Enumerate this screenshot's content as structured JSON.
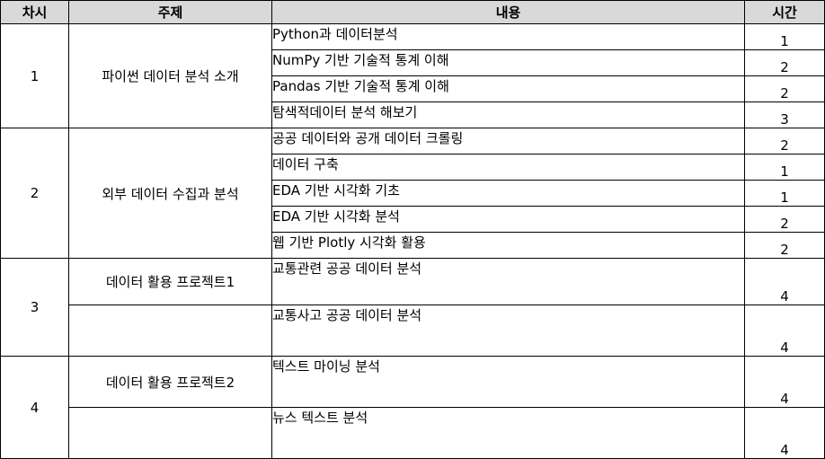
{
  "headers": {
    "round": "차시",
    "topic": "주제",
    "content": "내용",
    "hours": "시간"
  },
  "rows": [
    {
      "round": "1",
      "topic": "파이썬 데이터 분석 소개",
      "content": "Python과 데이터분석",
      "hours": "1"
    },
    {
      "content": "NumPy 기반 기술적 통계 이해",
      "hours": "2"
    },
    {
      "content": "Pandas 기반 기술적 통계 이해",
      "hours": "2"
    },
    {
      "content": "탐색적데이터 분석 해보기",
      "hours": "3"
    },
    {
      "round": "2",
      "topic": "외부 데이터 수집과 분석",
      "content": "공공 데이터와 공개 데이터 크롤링",
      "hours": "2"
    },
    {
      "content": "데이터 구축",
      "hours": "1"
    },
    {
      "content": "EDA 기반 시각화 기초",
      "hours": "1"
    },
    {
      "content": "EDA 기반 시각화 분석",
      "hours": "2"
    },
    {
      "content": "웹 기반 Plotly 시각화 활용",
      "hours": "2"
    },
    {
      "round": "3",
      "topic": "데이터 활용 프로젝트1",
      "content": "교통관련 공공 데이터 분석",
      "hours": "4"
    },
    {
      "topic": "",
      "content": "교통사고 공공 데이터 분석",
      "hours": "4"
    },
    {
      "round": "4",
      "topic": "데이터 활용 프로젝트2",
      "content": "텍스트 마이닝 분석",
      "hours": "4"
    },
    {
      "topic": "",
      "content": "뉴스 텍스트 분석",
      "hours": "4"
    }
  ]
}
